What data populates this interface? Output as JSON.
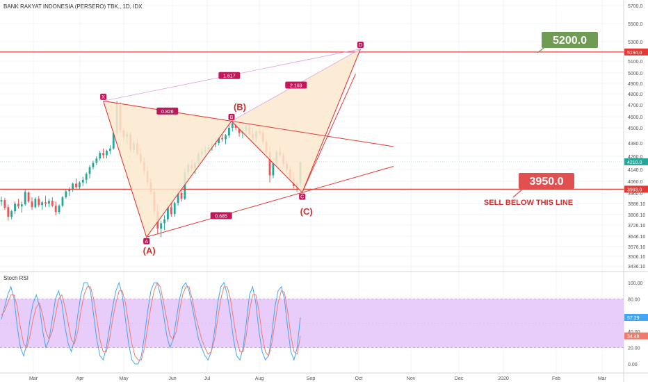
{
  "title": "BANK RAKYAT INDONESIA (PERSERO) TBK., 1D, IDX",
  "rsi_title": "Stoch RSI",
  "colors": {
    "up": "#26a69a",
    "down": "#ef5350",
    "level_line": "#e53935",
    "pattern_fill": "#fbe9cf",
    "pattern_stroke": "#e53935",
    "label_bg": "#c2185b",
    "fib_line": "#e1a0e0",
    "rsi_band": "#e6c8fb",
    "rsi_k": "#42a5f5",
    "rsi_d": "#ef7b6b",
    "green_callout": "#6f9b53",
    "red_callout": "#e05050"
  },
  "chart_data": [
    {
      "type": "candlestick",
      "title": "BANK RAKYAT INDONESIA (PERSERO) TBK., 1D, IDX",
      "x_ticks": [
        "Mar",
        "Apr",
        "May",
        "Jun",
        "Jul",
        "Aug",
        "Sep",
        "Oct",
        "Nov",
        "Dec",
        "2020",
        "Feb",
        "Mar"
      ],
      "y_ticks": [
        "5700.0",
        "5500.0",
        "5300.0",
        "5100.0",
        "5000.0",
        "4900.0",
        "4800.0",
        "4700.0",
        "4600.0",
        "4500.0",
        "4380.0",
        "4260.0",
        "4140.0",
        "4060.0",
        "3960.0",
        "3886.10",
        "3806.10",
        "3726.10",
        "3646.10",
        "3576.10",
        "3506.10",
        "3436.10"
      ],
      "price_labels": [
        {
          "value": "5194.0",
          "price": 5194,
          "color": "#e53935"
        },
        {
          "value": "4210.0",
          "price": 4210,
          "color": "#26a69a"
        },
        {
          "value": "3993.0",
          "price": 3993,
          "color": "#e53935"
        }
      ],
      "horizontal_lines": [
        5194,
        3993
      ],
      "close_guide": 4210,
      "pattern_points": [
        {
          "label": "X",
          "date": "Apr 17",
          "price": 4735
        },
        {
          "label": "A",
          "date": "May 15",
          "price": 3640
        },
        {
          "label": "B",
          "date": "Jul 15",
          "price": 4560
        },
        {
          "label": "C",
          "date": "Aug 26",
          "price": 3965
        },
        {
          "label": "D",
          "date": "Oct 2",
          "price": 5225
        }
      ],
      "ratios": [
        "1.617",
        "0.826",
        "2.169",
        "0.685"
      ],
      "annotations": {
        "A": "(A)",
        "B": "(B)",
        "C": "(C)",
        "target": "5200.0",
        "stop": "3950.0",
        "sell_note": "SELL BELOW THIS LINE"
      },
      "ohlc": [
        [
          3900,
          3935,
          3870,
          3910
        ],
        [
          3910,
          3925,
          3840,
          3855
        ],
        [
          3860,
          3880,
          3760,
          3790
        ],
        [
          3790,
          3840,
          3770,
          3830
        ],
        [
          3830,
          3900,
          3810,
          3885
        ],
        [
          3885,
          3920,
          3850,
          3865
        ],
        [
          3865,
          3900,
          3820,
          3880
        ],
        [
          3880,
          3990,
          3870,
          3970
        ],
        [
          3965,
          3975,
          3890,
          3900
        ],
        [
          3900,
          3930,
          3840,
          3860
        ],
        [
          3860,
          3930,
          3850,
          3920
        ],
        [
          3920,
          3940,
          3860,
          3875
        ],
        [
          3875,
          3905,
          3840,
          3895
        ],
        [
          3895,
          3940,
          3860,
          3885
        ],
        [
          3885,
          3920,
          3860,
          3905
        ],
        [
          3905,
          3930,
          3860,
          3870
        ],
        [
          3870,
          3900,
          3800,
          3825
        ],
        [
          3825,
          3880,
          3810,
          3870
        ],
        [
          3870,
          3940,
          3860,
          3930
        ],
        [
          3930,
          3990,
          3920,
          3975
        ],
        [
          3975,
          4010,
          3940,
          3990
        ],
        [
          3990,
          4050,
          3970,
          4040
        ],
        [
          4040,
          4080,
          4000,
          4010
        ],
        [
          4010,
          4060,
          3990,
          4050
        ],
        [
          4050,
          4090,
          4020,
          4070
        ],
        [
          4070,
          4120,
          4040,
          4110
        ],
        [
          4110,
          4180,
          4080,
          4160
        ],
        [
          4160,
          4220,
          4140,
          4200
        ],
        [
          4200,
          4260,
          4180,
          4240
        ],
        [
          4240,
          4310,
          4220,
          4290
        ],
        [
          4290,
          4330,
          4240,
          4270
        ],
        [
          4270,
          4320,
          4240,
          4310
        ],
        [
          4310,
          4360,
          4280,
          4330
        ],
        [
          4330,
          4480,
          4320,
          4460
        ],
        [
          4460,
          4735,
          4440,
          4700
        ],
        [
          4700,
          4720,
          4460,
          4480
        ],
        [
          4480,
          4500,
          4400,
          4430
        ],
        [
          4430,
          4470,
          4370,
          4450
        ],
        [
          4450,
          4470,
          4300,
          4320
        ],
        [
          4320,
          4400,
          4290,
          4380
        ],
        [
          4380,
          4420,
          4260,
          4280
        ],
        [
          4280,
          4330,
          4190,
          4210
        ],
        [
          4210,
          4250,
          4100,
          4130
        ],
        [
          4130,
          4170,
          4020,
          4050
        ],
        [
          4050,
          4080,
          3950,
          3970
        ],
        [
          3970,
          4000,
          3800,
          3830
        ],
        [
          3830,
          3880,
          3660,
          3700
        ],
        [
          3700,
          3760,
          3640,
          3740
        ],
        [
          3740,
          3800,
          3690,
          3770
        ],
        [
          3770,
          3880,
          3750,
          3860
        ],
        [
          3860,
          3900,
          3790,
          3810
        ],
        [
          3810,
          3900,
          3790,
          3890
        ],
        [
          3890,
          3980,
          3870,
          3960
        ],
        [
          3960,
          4000,
          3900,
          3920
        ],
        [
          3920,
          4150,
          3910,
          4120
        ],
        [
          4120,
          4200,
          4100,
          4180
        ],
        [
          4180,
          4230,
          4130,
          4150
        ],
        [
          4150,
          4210,
          4110,
          4200
        ],
        [
          4200,
          4300,
          4180,
          4280
        ],
        [
          4280,
          4330,
          4250,
          4300
        ],
        [
          4300,
          4350,
          4260,
          4320
        ],
        [
          4320,
          4370,
          4290,
          4340
        ],
        [
          4340,
          4390,
          4310,
          4370
        ],
        [
          4370,
          4420,
          4340,
          4380
        ],
        [
          4380,
          4440,
          4360,
          4420
        ],
        [
          4420,
          4460,
          4390,
          4410
        ],
        [
          4410,
          4450,
          4370,
          4440
        ],
        [
          4440,
          4520,
          4420,
          4500
        ],
        [
          4500,
          4560,
          4470,
          4540
        ],
        [
          4540,
          4570,
          4480,
          4500
        ],
        [
          4500,
          4530,
          4430,
          4460
        ],
        [
          4460,
          4510,
          4420,
          4480
        ],
        [
          4480,
          4530,
          4450,
          4510
        ],
        [
          4510,
          4520,
          4440,
          4450
        ],
        [
          4450,
          4500,
          4400,
          4420
        ],
        [
          4420,
          4480,
          4390,
          4470
        ],
        [
          4470,
          4520,
          4440,
          4460
        ],
        [
          4460,
          4490,
          4370,
          4390
        ],
        [
          4390,
          4410,
          4280,
          4300
        ],
        [
          4300,
          4350,
          4050,
          4100
        ],
        [
          4100,
          4220,
          4080,
          4200
        ],
        [
          4200,
          4320,
          4180,
          4300
        ],
        [
          4300,
          4350,
          4250,
          4270
        ],
        [
          4270,
          4290,
          4170,
          4190
        ],
        [
          4190,
          4220,
          4120,
          4140
        ],
        [
          4140,
          4170,
          4060,
          4080
        ],
        [
          4080,
          4120,
          4000,
          4020
        ],
        [
          4020,
          4060,
          3970,
          4040
        ],
        [
          4040,
          4210,
          4020,
          4210
        ]
      ]
    },
    {
      "type": "line",
      "title": "Stoch RSI",
      "y_ticks": [
        "100.00",
        "80.00",
        "60.00",
        "40.00",
        "20.00",
        "0.00"
      ],
      "band": [
        20,
        80
      ],
      "value_labels": [
        {
          "value": "57.29",
          "level": 57.29,
          "color": "#42a5f5"
        },
        {
          "value": "34.48",
          "level": 34.48,
          "color": "#ef7b6b"
        }
      ],
      "series": [
        {
          "values": [
            55,
            70,
            85,
            95,
            80,
            45,
            20,
            10,
            25,
            55,
            75,
            85,
            70,
            40,
            20,
            30,
            55,
            80,
            90,
            75,
            45,
            25,
            15,
            30,
            60,
            85,
            100,
            100,
            90,
            60,
            30,
            10,
            5,
            20,
            45,
            70,
            90,
            100,
            85,
            55,
            25,
            5,
            0,
            0,
            10,
            35,
            65,
            90,
            100,
            100,
            85,
            60,
            35,
            20,
            30,
            55,
            80,
            95,
            100,
            90,
            70,
            50,
            30,
            20,
            10,
            5,
            15,
            40,
            75,
            95,
            100,
            85,
            60,
            30,
            10,
            5,
            20,
            50,
            85,
            95,
            75,
            40,
            15,
            5,
            10,
            35,
            70,
            90,
            95,
            80,
            45,
            15,
            5,
            20,
            57.29
          ]
        },
        {
          "values": [
            60,
            65,
            75,
            85,
            85,
            70,
            45,
            25,
            20,
            35,
            55,
            70,
            75,
            60,
            40,
            30,
            40,
            60,
            80,
            85,
            70,
            50,
            30,
            25,
            40,
            65,
            85,
            95,
            95,
            80,
            55,
            30,
            15,
            15,
            30,
            55,
            75,
            90,
            90,
            75,
            50,
            25,
            10,
            5,
            5,
            20,
            45,
            70,
            90,
            100,
            95,
            75,
            55,
            35,
            30,
            40,
            65,
            85,
            95,
            95,
            80,
            60,
            45,
            30,
            20,
            12,
            15,
            30,
            55,
            80,
            95,
            95,
            80,
            55,
            30,
            15,
            15,
            35,
            65,
            85,
            85,
            65,
            35,
            15,
            10,
            25,
            50,
            75,
            90,
            88,
            65,
            35,
            15,
            12,
            34.48
          ]
        }
      ]
    }
  ]
}
